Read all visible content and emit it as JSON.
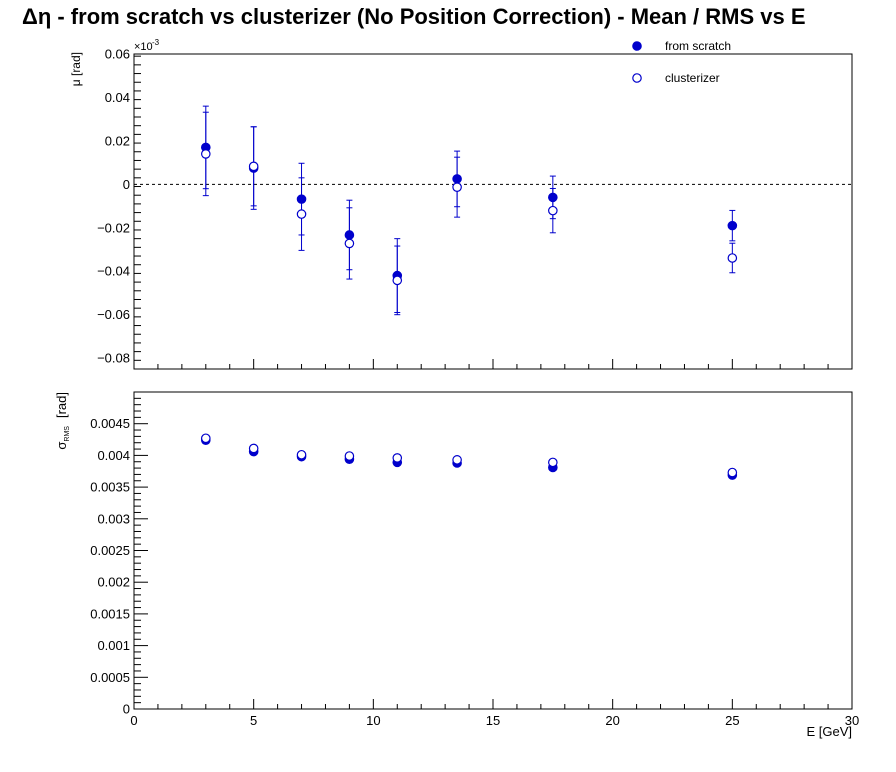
{
  "title": "Δη  -  from scratch vs clusterizer  (No Position Correction)  -  Mean / RMS vs E",
  "colors": {
    "series": "#0000cc",
    "axis": "#000000"
  },
  "chart_data": [
    {
      "type": "scatter",
      "panel": "mean",
      "xlim": [
        0,
        30
      ],
      "ylim": [
        -0.085,
        0.06
      ],
      "y_multiplier_label": "×10",
      "y_multiplier_exp": "-3",
      "ylabel": "μ  [rad]",
      "xlabel": "",
      "xticks": [
        0,
        5,
        10,
        15,
        20,
        25,
        30
      ],
      "yticks": [
        -0.08,
        -0.06,
        -0.04,
        -0.02,
        0,
        0.02,
        0.04,
        0.06
      ],
      "ytick_labels": [
        "−0.08",
        "−0.06",
        "−0.04",
        "−0.02",
        "0",
        "0.02",
        "0.04",
        "0.06"
      ],
      "reference_line": 0,
      "legend": {
        "placement": "top-right",
        "entries": [
          "from scratch",
          "clusterizer"
        ]
      },
      "series": [
        {
          "name": "from scratch",
          "marker": "filled-circle",
          "x": [
            3,
            5,
            7,
            9,
            11,
            13.5,
            17.5,
            25
          ],
          "y": [
            0.017,
            0.0075,
            -0.0068,
            -0.0233,
            -0.042,
            0.0025,
            -0.006,
            -0.019
          ],
          "yerr": [
            0.019,
            0.019,
            0.0165,
            0.016,
            0.017,
            0.0128,
            0.0098,
            0.007
          ]
        },
        {
          "name": "clusterizer",
          "marker": "open-circle",
          "x": [
            3,
            5,
            7,
            9,
            11,
            13.5,
            17.5,
            25
          ],
          "y": [
            0.014,
            0.0083,
            -0.0137,
            -0.0272,
            -0.0442,
            -0.0013,
            -0.0121,
            -0.0339
          ],
          "yerr": [
            0.0192,
            0.0182,
            0.0167,
            0.0164,
            0.0158,
            0.0138,
            0.0102,
            0.0068
          ]
        }
      ]
    },
    {
      "type": "scatter",
      "panel": "rms",
      "xlim": [
        0,
        30
      ],
      "ylim": [
        0,
        0.005
      ],
      "ylabel_main": "σ",
      "ylabel_sub": "RMS",
      "ylabel_unit": "[rad]",
      "xlabel": "E  [GeV]",
      "xticks": [
        0,
        5,
        10,
        15,
        20,
        25,
        30
      ],
      "yticks": [
        0,
        0.0005,
        0.001,
        0.0015,
        0.002,
        0.0025,
        0.003,
        0.0035,
        0.004,
        0.0045
      ],
      "ytick_labels": [
        "0",
        "0.0005",
        "0.001",
        "0.0015",
        "0.002",
        "0.0025",
        "0.003",
        "0.0035",
        "0.004",
        "0.0045"
      ],
      "series": [
        {
          "name": "from scratch",
          "marker": "filled-circle",
          "x": [
            3,
            5,
            7,
            9,
            11,
            13.5,
            17.5,
            25
          ],
          "y": [
            0.00424,
            0.00406,
            0.00398,
            0.00394,
            0.00389,
            0.00388,
            0.00381,
            0.00369
          ]
        },
        {
          "name": "clusterizer",
          "marker": "open-circle",
          "x": [
            3,
            5,
            7,
            9,
            11,
            13.5,
            17.5,
            25
          ],
          "y": [
            0.00427,
            0.00411,
            0.00401,
            0.00399,
            0.00396,
            0.00393,
            0.00389,
            0.00373
          ]
        }
      ]
    }
  ]
}
